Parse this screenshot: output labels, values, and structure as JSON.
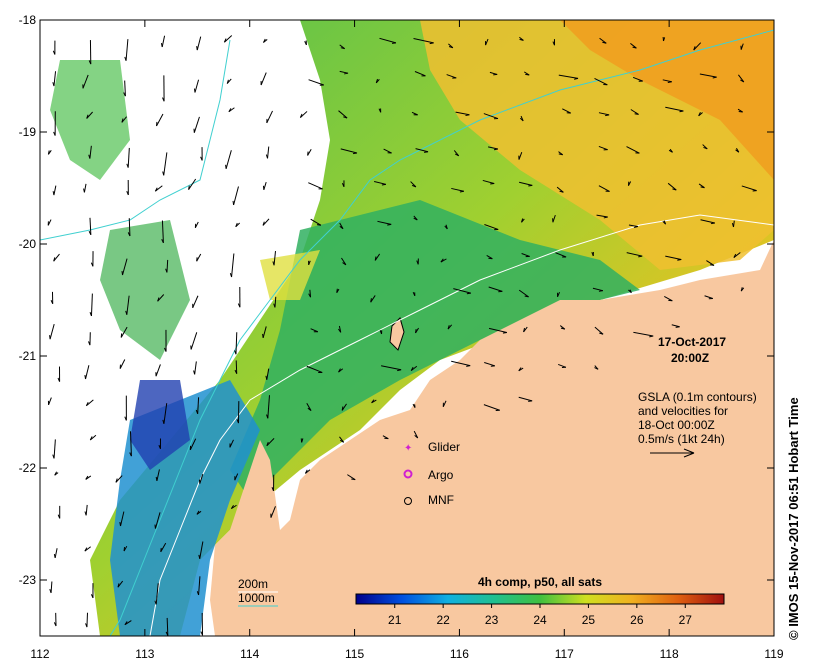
{
  "map": {
    "date_label": "17-Oct-2017",
    "time_label": "20:00Z",
    "gsla_lines": [
      "GSLA (0.1m contours)",
      "and velocities for",
      "18-Oct 00:00Z",
      "0.5m/s (1kt 24h)"
    ],
    "x_ticks": [
      "112",
      "113",
      "114",
      "115",
      "116",
      "117",
      "118",
      "119"
    ],
    "y_ticks": [
      "-18",
      "-19",
      "-20",
      "-21",
      "-22",
      "-23"
    ],
    "x_range": [
      112,
      119
    ],
    "y_range": [
      -23.5,
      -18
    ],
    "markers": [
      {
        "label": "Glider",
        "color": "#d020d0"
      },
      {
        "label": "Argo",
        "color": "#d020d0"
      },
      {
        "label": "MNF",
        "color": "#000000"
      }
    ],
    "isobaths": [
      {
        "label": "200m",
        "color": "#ffffff"
      },
      {
        "label": "1000m",
        "color": "#40d0d0"
      }
    ],
    "colorbar": {
      "title": "4h comp, p50, all sats",
      "ticks": [
        "21",
        "22",
        "23",
        "24",
        "25",
        "26",
        "27"
      ],
      "range": [
        20.2,
        27.8
      ],
      "colors": [
        "#00008b",
        "#0050e0",
        "#10b0e0",
        "#20c090",
        "#40c040",
        "#d0e020",
        "#f0b020",
        "#e06010",
        "#a01010"
      ]
    },
    "land_color": "#f8c8a0",
    "credit": "© IMOS 15-Nov-2017 06:51 Hobart Time"
  }
}
